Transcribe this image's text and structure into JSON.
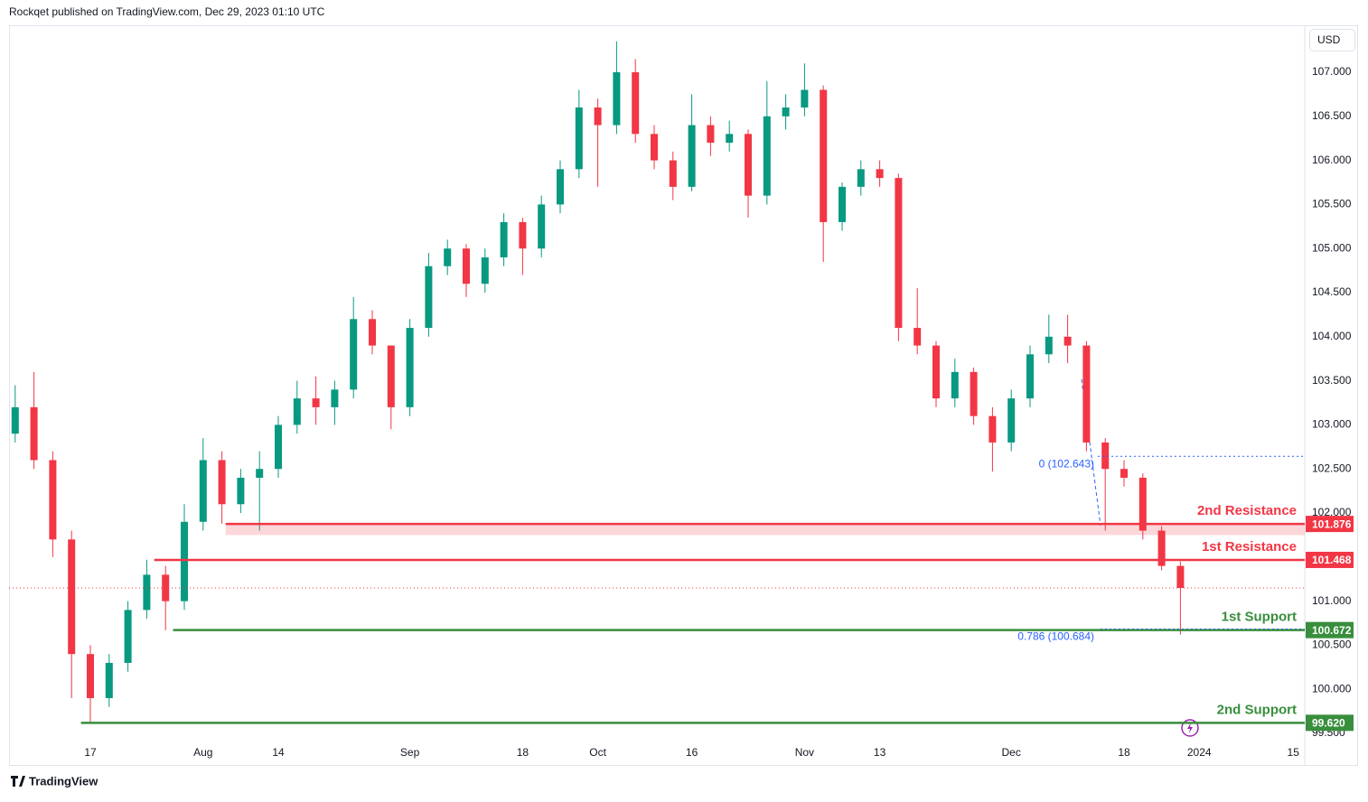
{
  "page": {
    "header": "Rockqet published on TradingView.com, Dec 29, 2023 01:10 UTC",
    "currency": "USD",
    "brand": "TradingView"
  },
  "chart_data": {
    "type": "candlestick",
    "categories": [
      null,
      null,
      null,
      null,
      "17",
      null,
      null,
      null,
      null,
      null,
      "Aug",
      null,
      null,
      null,
      "14",
      null,
      null,
      null,
      null,
      null,
      null,
      "Sep",
      null,
      null,
      null,
      null,
      null,
      "18",
      null,
      null,
      null,
      "Oct",
      null,
      null,
      null,
      null,
      "16",
      null,
      null,
      null,
      null,
      null,
      "Nov",
      null,
      null,
      null,
      "13",
      null,
      null,
      null,
      null,
      null,
      null,
      "Dec",
      null,
      null,
      null,
      null,
      null,
      "18",
      null,
      null,
      null,
      "2024",
      null,
      null,
      null,
      null,
      "15"
    ],
    "series": [
      {
        "up_color": "#089981",
        "down_color": "#f23645",
        "open": [
          102.9,
          103.2,
          102.6,
          101.7,
          100.4,
          99.9,
          100.3,
          100.9,
          101.3,
          101.0,
          101.9,
          102.6,
          102.1,
          102.4,
          102.5,
          103.0,
          103.3,
          103.2,
          103.4,
          104.2,
          103.9,
          103.2,
          104.1,
          104.8,
          105.0,
          104.6,
          104.9,
          105.3,
          105.0,
          105.5,
          105.9,
          106.6,
          106.4,
          107.0,
          106.3,
          106.0,
          105.7,
          106.4,
          106.2,
          106.3,
          105.6,
          106.5,
          106.6,
          106.8,
          105.3,
          105.7,
          105.9,
          105.8,
          104.1,
          103.9,
          103.3,
          103.6,
          103.1,
          102.8,
          103.3,
          103.8,
          104.0,
          103.9,
          102.8,
          102.5,
          102.4,
          101.8,
          101.4,
          null,
          null,
          null,
          null,
          null,
          null
        ],
        "high": [
          103.45,
          103.6,
          102.7,
          101.8,
          100.5,
          100.4,
          101.0,
          101.47,
          101.4,
          102.1,
          102.85,
          102.7,
          102.5,
          102.7,
          103.1,
          103.5,
          103.55,
          103.5,
          104.45,
          104.3,
          103.9,
          104.2,
          104.95,
          105.1,
          105.05,
          105.0,
          105.4,
          105.35,
          105.6,
          106.0,
          106.8,
          106.7,
          107.35,
          107.15,
          106.4,
          106.1,
          106.75,
          106.5,
          106.45,
          106.35,
          106.9,
          106.75,
          107.1,
          106.85,
          105.75,
          106.0,
          106.0,
          105.85,
          104.55,
          103.95,
          103.75,
          103.65,
          103.2,
          103.4,
          103.9,
          104.25,
          104.25,
          103.95,
          102.85,
          102.6,
          102.45,
          101.85,
          101.45,
          null,
          null,
          null,
          null,
          null,
          null
        ],
        "low": [
          102.8,
          102.5,
          101.5,
          99.9,
          99.62,
          99.8,
          100.2,
          100.8,
          100.67,
          100.9,
          101.8,
          101.88,
          102.0,
          101.8,
          102.4,
          102.9,
          103.0,
          103.0,
          103.3,
          103.8,
          102.95,
          103.1,
          104.0,
          104.7,
          104.45,
          104.5,
          104.8,
          104.7,
          104.9,
          105.4,
          105.8,
          105.7,
          106.3,
          106.2,
          105.9,
          105.55,
          105.65,
          106.05,
          106.1,
          105.35,
          105.5,
          106.35,
          106.5,
          104.85,
          105.2,
          105.6,
          105.7,
          103.95,
          103.8,
          103.2,
          103.2,
          103.0,
          102.47,
          102.7,
          103.2,
          103.7,
          103.7,
          102.7,
          101.8,
          102.3,
          101.7,
          101.35,
          100.62,
          null,
          null,
          null,
          null,
          null,
          null
        ],
        "close": [
          103.2,
          102.6,
          101.7,
          100.4,
          99.9,
          100.3,
          100.9,
          101.3,
          101.0,
          101.9,
          102.6,
          102.1,
          102.4,
          102.5,
          103.0,
          103.3,
          103.2,
          103.4,
          104.2,
          103.9,
          103.2,
          104.1,
          104.8,
          105.0,
          104.6,
          104.9,
          105.3,
          105.0,
          105.5,
          105.9,
          106.6,
          106.4,
          107.0,
          106.3,
          106.0,
          105.7,
          106.4,
          106.2,
          106.3,
          105.6,
          106.5,
          106.6,
          106.8,
          105.3,
          105.7,
          105.9,
          105.8,
          104.1,
          103.9,
          103.3,
          103.6,
          103.1,
          102.8,
          103.3,
          103.8,
          104.0,
          103.9,
          102.8,
          102.5,
          102.4,
          101.8,
          101.4,
          101.15,
          null,
          null,
          null,
          null,
          null,
          null
        ]
      }
    ],
    "ylim": [
      99.398,
      107.512
    ],
    "yticks": [
      {
        "value": 99.5,
        "label": "99.500"
      },
      {
        "value": 100,
        "label": "100.000"
      },
      {
        "value": 100.5,
        "label": "100.500"
      },
      {
        "value": 101,
        "label": "101.000"
      },
      {
        "value": 101.5,
        "label": "101.500"
      },
      {
        "value": 102,
        "label": "102.000"
      },
      {
        "value": 102.5,
        "label": "102.500"
      },
      {
        "value": 103,
        "label": "103.000"
      },
      {
        "value": 103.5,
        "label": "103.500"
      },
      {
        "value": 104,
        "label": "104.000"
      },
      {
        "value": 104.5,
        "label": "104.500"
      },
      {
        "value": 105,
        "label": "105.000"
      },
      {
        "value": 105.5,
        "label": "105.500"
      },
      {
        "value": 106,
        "label": "106.000"
      },
      {
        "value": 106.5,
        "label": "106.500"
      },
      {
        "value": 107,
        "label": "107.000"
      }
    ],
    "grid": false,
    "levels": [
      {
        "name": "2nd Resistance",
        "value": 101.876,
        "color": "#f23645",
        "zone_bottom": 101.75
      },
      {
        "name": "1st Resistance",
        "value": 101.468,
        "color": "#f23645"
      },
      {
        "name": "1st Support",
        "value": 100.672,
        "color": "#388e3c"
      },
      {
        "name": "2nd Support",
        "value": 99.62,
        "label": "99.620",
        "color": "#388e3c"
      }
    ],
    "fib": [
      {
        "text": "0 (102.643)",
        "value": 102.643,
        "color": "#2962ff"
      },
      {
        "text": "0.786 (100.684)",
        "value": 100.684,
        "color": "#2962ff"
      }
    ]
  }
}
